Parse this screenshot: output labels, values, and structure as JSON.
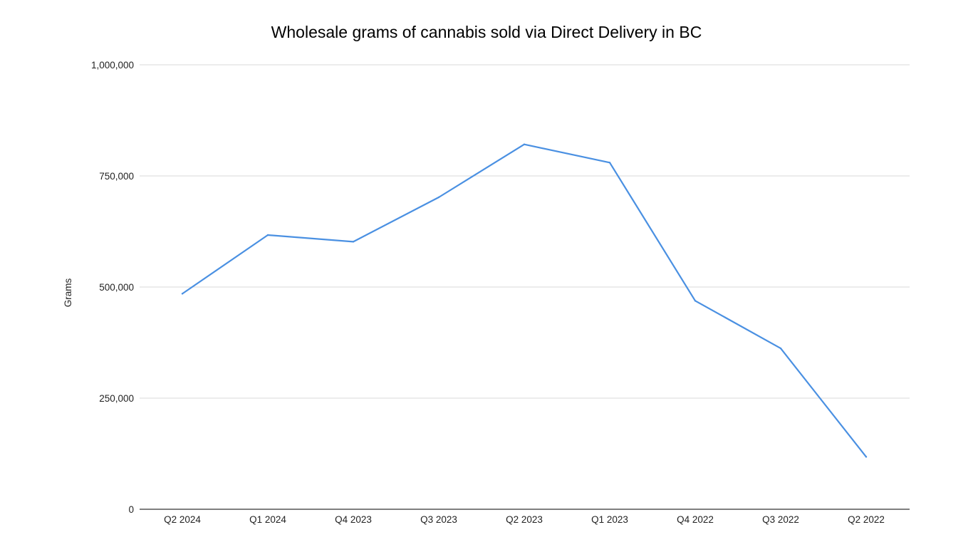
{
  "chart_data": {
    "type": "line",
    "title": "Wholesale grams of cannabis sold via Direct Delivery in BC",
    "xlabel": "",
    "ylabel": "Grams",
    "categories": [
      "Q2 2024",
      "Q1 2024",
      "Q4 2023",
      "Q3 2023",
      "Q2 2023",
      "Q1 2023",
      "Q4 2022",
      "Q3 2022",
      "Q2 2022"
    ],
    "series": [
      {
        "values": [
          485000,
          617000,
          602000,
          702000,
          821000,
          780000,
          469000,
          362000,
          118000
        ],
        "color": "#4a90e2"
      }
    ],
    "ylim": [
      0,
      1000000
    ],
    "yticks": [
      0,
      250000,
      500000,
      750000,
      1000000
    ],
    "ytick_labels": [
      "0",
      "250,000",
      "500,000",
      "750,000",
      "1,000,000"
    ],
    "grid": true,
    "legend": "none",
    "colors": {
      "line": "#4a90e2",
      "grid": "#d9d9d9",
      "axis": "#333333"
    }
  }
}
